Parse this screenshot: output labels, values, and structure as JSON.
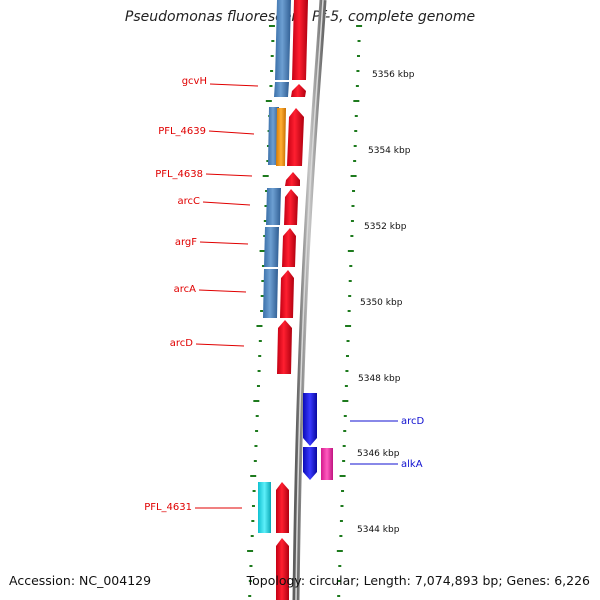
{
  "title": "Pseudomonas fluorescens Pf-5, complete genome",
  "accession": "Accession: NC_004129",
  "topology": "Topology: circular; Length: 7,074,893 bp; Genes: 6,226",
  "colors": {
    "reverse_cds": "#4f86c2",
    "forward_cds": "#e8001a",
    "blue_feature": "#1515e0",
    "magenta_feature": "#ec2fa3",
    "cyan_feature": "#17dcea",
    "orange_feature": "#f5960f",
    "left_label": "#e00000",
    "right_label": "#1010d0",
    "tick": "#1d7a1d",
    "backbone": "#8a8a8a"
  },
  "scale_labels": [
    "5356 kbp",
    "5354 kbp",
    "5352 kbp",
    "5350 kbp",
    "5348 kbp",
    "5346 kbp",
    "5344 kbp"
  ],
  "left_gene_labels": [
    "gcvH",
    "PFL_4639",
    "PFL_4638",
    "arcC",
    "argF",
    "arcA",
    "arcD",
    "PFL_4631"
  ],
  "right_gene_labels": [
    "arcD",
    "alkA"
  ]
}
